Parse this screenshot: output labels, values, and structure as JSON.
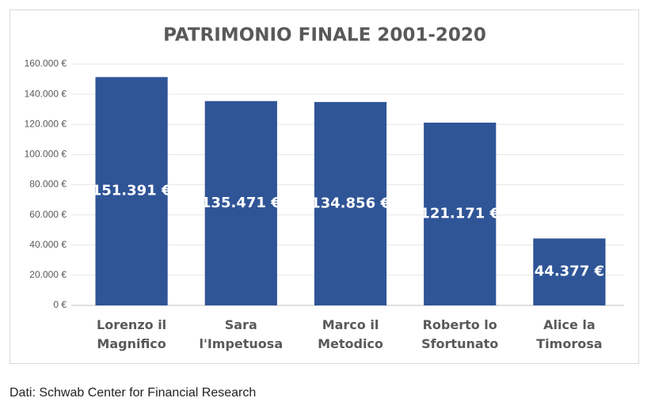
{
  "chart_data": {
    "type": "bar",
    "title": "PATRIMONIO FINALE 2001-2020",
    "categories": [
      "Lorenzo il Magnifico",
      "Sara l'Impetuosa",
      "Marco il Metodico",
      "Roberto lo Sfortunato",
      "Alice la Timorosa"
    ],
    "values": [
      151391,
      135471,
      134856,
      121171,
      44377
    ],
    "value_labels": [
      "151.391 €",
      "135.471 €",
      "134.856 €",
      "121.171 €",
      "44.377 €"
    ],
    "color": "#2f5597",
    "ylim": [
      0,
      160000
    ],
    "yticks": [
      {
        "value": 0,
        "label": "0 €"
      },
      {
        "value": 20000,
        "label": "20.000 €"
      },
      {
        "value": 40000,
        "label": "40.000 €"
      },
      {
        "value": 60000,
        "label": "60.000 €"
      },
      {
        "value": 80000,
        "label": "80.000 €"
      },
      {
        "value": 100000,
        "label": "100.000 €"
      },
      {
        "value": 120000,
        "label": "120.000 €"
      },
      {
        "value": 140000,
        "label": "140.000 €"
      },
      {
        "value": 160000,
        "label": "160.000 €"
      }
    ],
    "grid": true
  },
  "source": "Dati: Schwab Center for Financial Research"
}
